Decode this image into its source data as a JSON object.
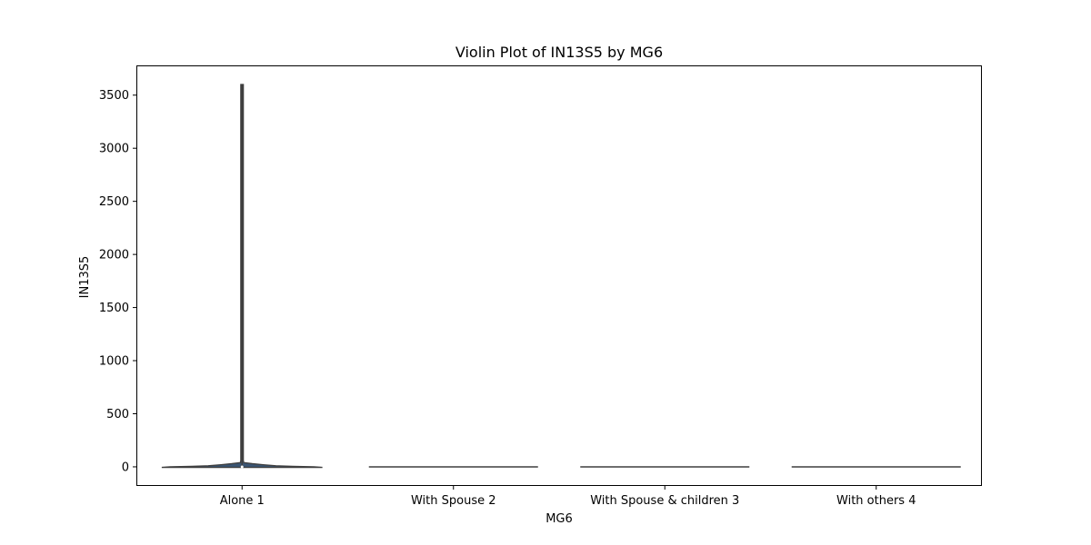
{
  "chart_data": {
    "type": "violin",
    "title": "Violin Plot of IN13S5 by MG6",
    "xlabel": "MG6",
    "ylabel": "IN13S5",
    "categories": [
      "Alone 1",
      "With Spouse 2",
      "With Spouse & children 3",
      "With others 4"
    ],
    "ylim": [
      -180,
      3780
    ],
    "yticks": [
      0,
      500,
      1000,
      1500,
      2000,
      2500,
      3000,
      3500
    ],
    "violins": [
      {
        "category": "Alone 1",
        "min": -5,
        "max": 3600,
        "median": 0,
        "q1": 0,
        "q3": 5,
        "density": [
          [
            -5,
            0.95
          ],
          [
            0,
            0.85
          ],
          [
            5,
            0.6
          ],
          [
            10,
            0.4
          ],
          [
            20,
            0.25
          ],
          [
            30,
            0.12
          ],
          [
            40,
            0.02
          ],
          [
            60,
            0.015
          ],
          [
            3600,
            0.015
          ]
        ]
      },
      {
        "category": "With Spouse 2",
        "min": 0,
        "max": 0,
        "median": 0,
        "q1": 0,
        "q3": 0,
        "density": [
          [
            0,
            1.0
          ]
        ]
      },
      {
        "category": "With Spouse & children 3",
        "min": 0,
        "max": 0,
        "median": 0,
        "q1": 0,
        "q3": 0,
        "density": [
          [
            0,
            1.0
          ]
        ]
      },
      {
        "category": "With others 4",
        "min": 0,
        "max": 0,
        "median": 0,
        "q1": 0,
        "q3": 0,
        "density": [
          [
            0,
            1.0
          ]
        ]
      }
    ],
    "violin_fill": "#3a5573",
    "line_color": "#3f3f3f",
    "grid": false,
    "legend": "none"
  }
}
